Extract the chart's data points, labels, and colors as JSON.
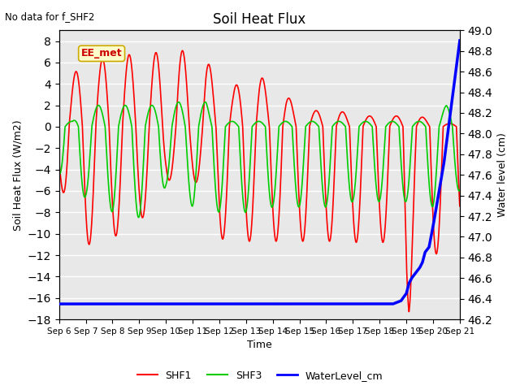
{
  "title": "Soil Heat Flux",
  "top_left_text": "No data for f_SHF2",
  "ylabel_left": "Soil Heat Flux (W/m2)",
  "ylabel_right": "Water level (cm)",
  "xlabel": "Time",
  "legend_labels": [
    "SHF1",
    "SHF3",
    "WaterLevel_cm"
  ],
  "legend_colors": [
    "#ff0000",
    "#00cc00",
    "#0000ff"
  ],
  "annotation_text": "EE_met",
  "annotation_color": "#cc0000",
  "annotation_bg": "#ffffcc",
  "annotation_border": "#ccaa00",
  "left_ylim": [
    -18,
    9
  ],
  "right_ylim": [
    46.2,
    49.0
  ],
  "left_yticks": [
    -18,
    -16,
    -14,
    -12,
    -10,
    -8,
    -6,
    -4,
    -2,
    0,
    2,
    4,
    6,
    8
  ],
  "right_yticks": [
    46.2,
    46.4,
    46.6,
    46.8,
    47.0,
    47.2,
    47.4,
    47.6,
    47.8,
    48.0,
    48.2,
    48.4,
    48.6,
    48.8,
    49.0
  ],
  "xtick_labels": [
    "Sep 6",
    "Sep 7",
    "Sep 8",
    "Sep 9",
    "Sep 10",
    "Sep 11",
    "Sep 12",
    "Sep 13",
    "Sep 14",
    "Sep 15",
    "Sep 16",
    "Sep 17",
    "Sep 18",
    "Sep 19",
    "Sep 20",
    "Sep 21"
  ],
  "background_color": "#ffffff",
  "plot_bg_color": "#e8e8e8",
  "grid_color": "#ffffff",
  "shf1_color": "#ff0000",
  "shf3_color": "#00cc00",
  "water_color": "#0000ff"
}
